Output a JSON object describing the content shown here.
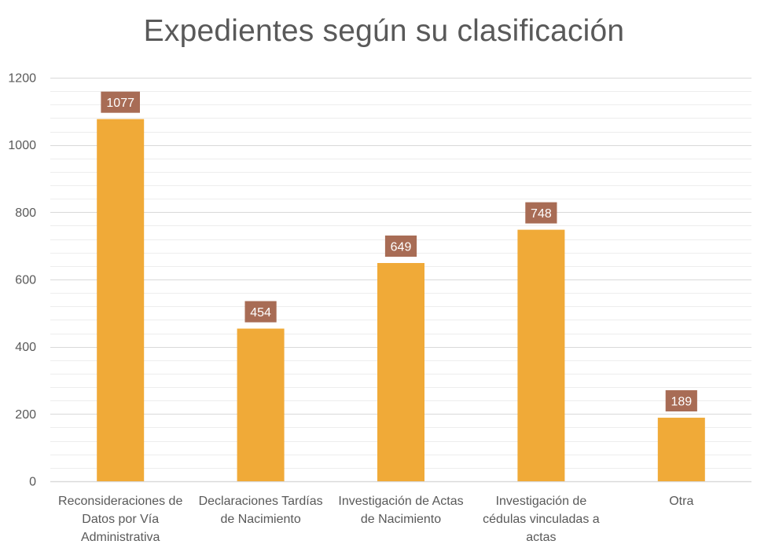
{
  "chart_data": {
    "type": "bar",
    "title": "Expedientes según su clasificación",
    "categories": [
      [
        "Reconsideraciones de",
        "Datos por Vía",
        "Administrativa"
      ],
      [
        "Declaraciones Tardías",
        "de Nacimiento"
      ],
      [
        "Investigación de Actas",
        "de Nacimiento"
      ],
      [
        "Investigación de",
        "cédulas vinculadas a",
        "actas"
      ],
      [
        "Otra"
      ]
    ],
    "values": [
      1077,
      454,
      649,
      748,
      189
    ],
    "data_labels": [
      "1077",
      "454",
      "649",
      "748",
      "189"
    ],
    "ylim": [
      0,
      1200
    ],
    "yticks": [
      0,
      200,
      400,
      600,
      800,
      1000,
      1200
    ],
    "minor_grid_step": 40,
    "grid": true,
    "legend": "none",
    "xlabel": "",
    "ylabel": "",
    "colors": {
      "bar": "#F0AA38",
      "data_label_bg": "#A86C55",
      "major_grid": "#D9D9D9",
      "minor_grid": "#EDEDED",
      "text": "#595959"
    }
  }
}
